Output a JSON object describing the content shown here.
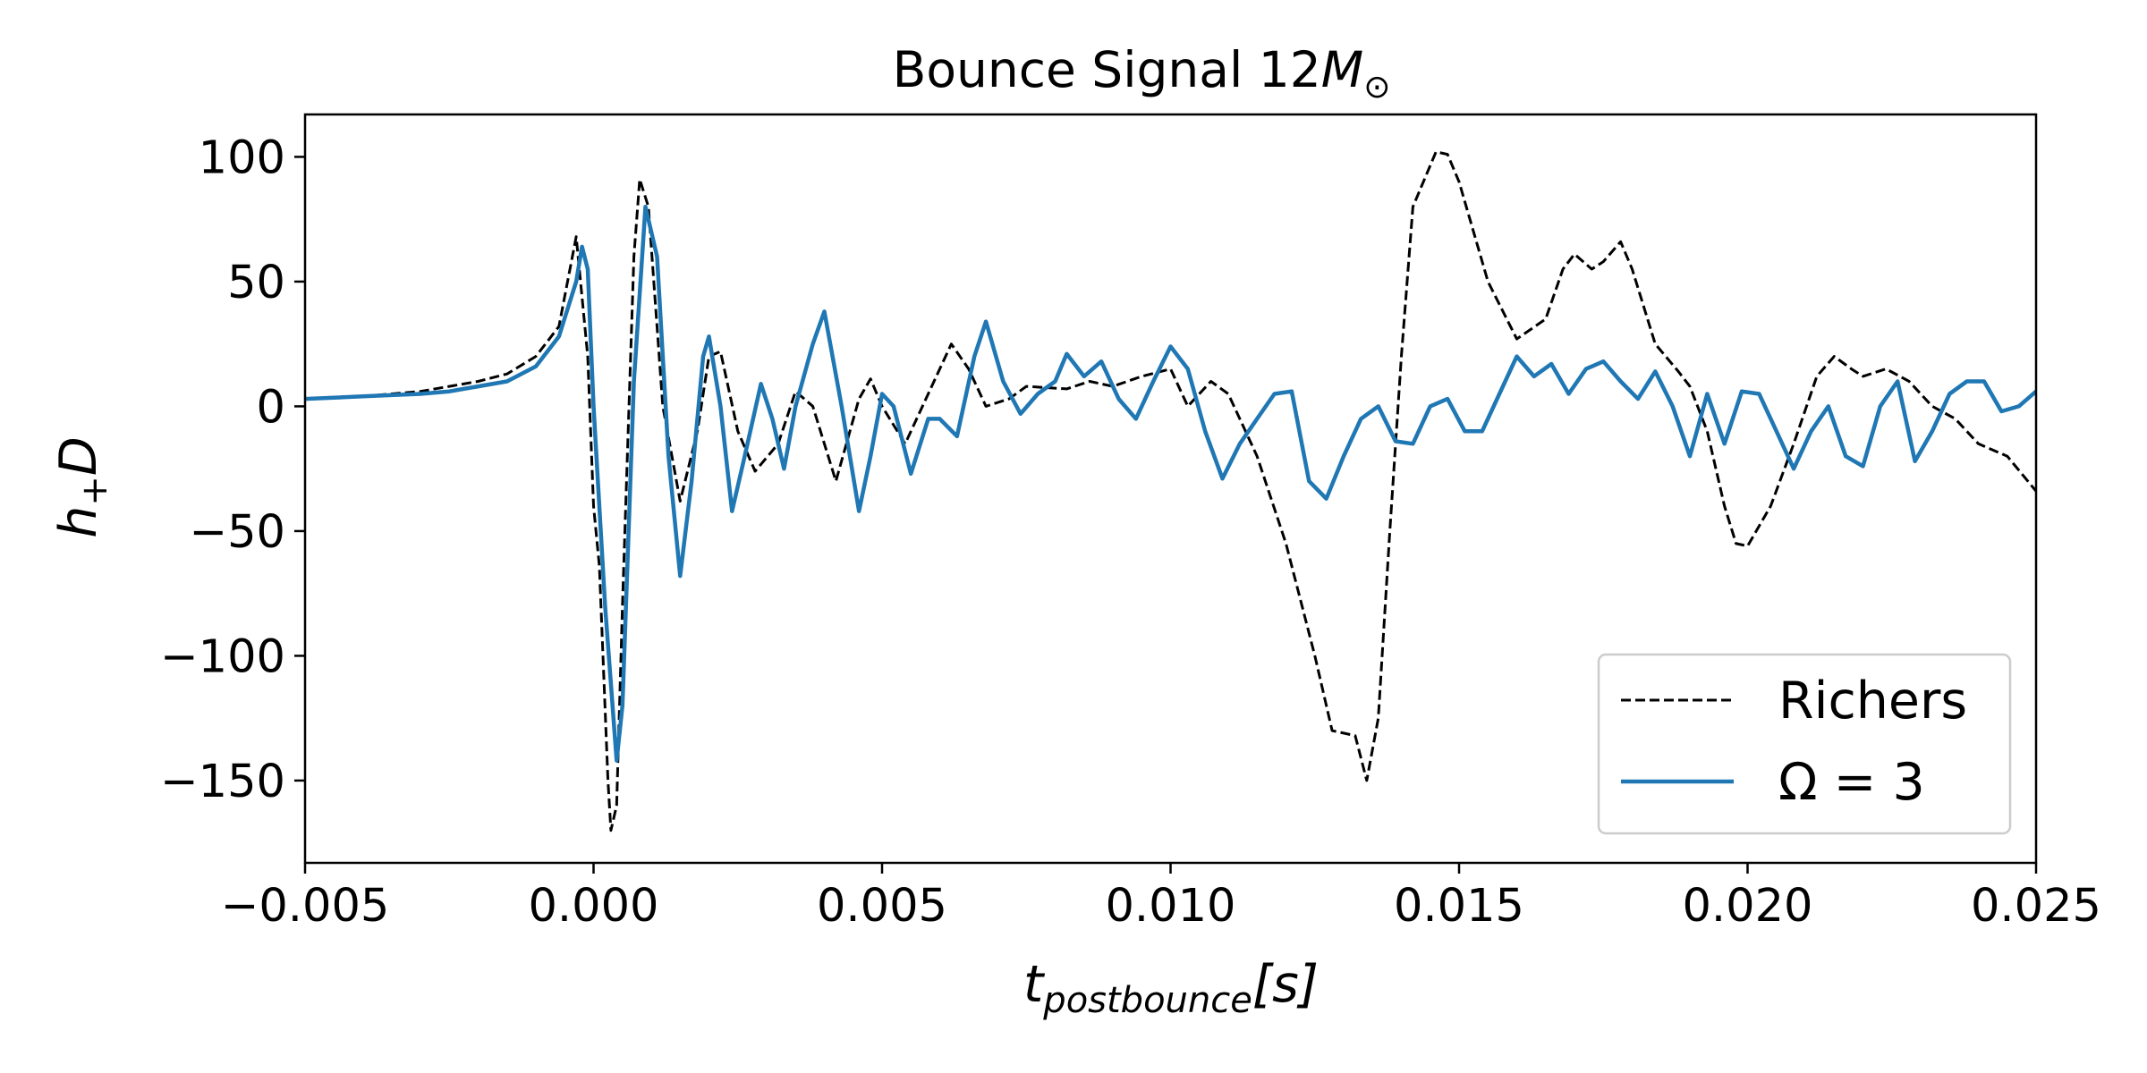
{
  "chart_data": {
    "type": "line",
    "title": {
      "main": "Bounce Signal 12",
      "symbol": "M",
      "subscript": "⊙"
    },
    "xlabel": {
      "main": "t",
      "subscript": "postbounce",
      "unit": "[s]"
    },
    "ylabel": {
      "main": "h",
      "subscript": "+",
      "tail": "D"
    },
    "xlim": [
      -0.005,
      0.025
    ],
    "ylim": [
      -183,
      117
    ],
    "x_ticks": [
      -0.005,
      0.0,
      0.005,
      0.01,
      0.015,
      0.02,
      0.025
    ],
    "x_tick_labels": [
      "−0.005",
      "0.000",
      "0.005",
      "0.010",
      "0.015",
      "0.020",
      "0.025"
    ],
    "y_ticks": [
      100,
      50,
      0,
      -50,
      -100,
      -150
    ],
    "y_tick_labels": [
      "100",
      "50",
      "0",
      "−50",
      "−100",
      "−150"
    ],
    "grid": false,
    "legend_position": "bottom-right",
    "series": [
      {
        "name": "Richers",
        "color": "#000000",
        "line_style": "dashed",
        "points": [
          [
            -0.005,
            3
          ],
          [
            -0.004,
            4
          ],
          [
            -0.003,
            6
          ],
          [
            -0.0025,
            8
          ],
          [
            -0.002,
            10
          ],
          [
            -0.0015,
            13
          ],
          [
            -0.001,
            20
          ],
          [
            -0.0006,
            32
          ],
          [
            -0.0003,
            68
          ],
          [
            -0.0001,
            20
          ],
          [
            0.0,
            -40
          ],
          [
            0.0001,
            -64
          ],
          [
            0.00025,
            -150
          ],
          [
            0.0003,
            -170
          ],
          [
            0.0004,
            -160
          ],
          [
            0.0005,
            -80
          ],
          [
            0.0007,
            60
          ],
          [
            0.0008,
            91
          ],
          [
            0.00095,
            80
          ],
          [
            0.0012,
            0
          ],
          [
            0.0015,
            -38
          ],
          [
            0.0018,
            -10
          ],
          [
            0.002,
            20
          ],
          [
            0.0022,
            22
          ],
          [
            0.0025,
            -10
          ],
          [
            0.0028,
            -26
          ],
          [
            0.0032,
            -15
          ],
          [
            0.0035,
            6
          ],
          [
            0.0038,
            0
          ],
          [
            0.0042,
            -30
          ],
          [
            0.0046,
            3
          ],
          [
            0.0048,
            11
          ],
          [
            0.005,
            0
          ],
          [
            0.0054,
            -15
          ],
          [
            0.0058,
            5
          ],
          [
            0.0062,
            25
          ],
          [
            0.0065,
            15
          ],
          [
            0.0068,
            0
          ],
          [
            0.0072,
            3
          ],
          [
            0.0075,
            8
          ],
          [
            0.0082,
            7
          ],
          [
            0.0086,
            10
          ],
          [
            0.009,
            8
          ],
          [
            0.0095,
            12
          ],
          [
            0.01,
            15
          ],
          [
            0.0103,
            0
          ],
          [
            0.0107,
            10
          ],
          [
            0.011,
            5
          ],
          [
            0.0115,
            -20
          ],
          [
            0.012,
            -55
          ],
          [
            0.0125,
            -100
          ],
          [
            0.0128,
            -130
          ],
          [
            0.0132,
            -132
          ],
          [
            0.0134,
            -150
          ],
          [
            0.0136,
            -125
          ],
          [
            0.0138,
            -50
          ],
          [
            0.014,
            20
          ],
          [
            0.0142,
            80
          ],
          [
            0.0146,
            102
          ],
          [
            0.0148,
            101
          ],
          [
            0.015,
            90
          ],
          [
            0.0155,
            50
          ],
          [
            0.016,
            27
          ],
          [
            0.0165,
            35
          ],
          [
            0.0168,
            55
          ],
          [
            0.017,
            61
          ],
          [
            0.0173,
            55
          ],
          [
            0.0175,
            58
          ],
          [
            0.0178,
            66
          ],
          [
            0.018,
            55
          ],
          [
            0.0184,
            25
          ],
          [
            0.0188,
            14
          ],
          [
            0.019,
            8
          ],
          [
            0.0193,
            -10
          ],
          [
            0.0196,
            -40
          ],
          [
            0.0198,
            -55
          ],
          [
            0.02,
            -56
          ],
          [
            0.0204,
            -40
          ],
          [
            0.0208,
            -15
          ],
          [
            0.0212,
            12
          ],
          [
            0.0215,
            20
          ],
          [
            0.0218,
            15
          ],
          [
            0.022,
            12
          ],
          [
            0.0224,
            15
          ],
          [
            0.0228,
            10
          ],
          [
            0.0232,
            0
          ],
          [
            0.0236,
            -5
          ],
          [
            0.024,
            -15
          ],
          [
            0.0245,
            -20
          ],
          [
            0.025,
            -34
          ]
        ]
      },
      {
        "name": "Ω = 3",
        "color": "#1f77b4",
        "line_style": "solid",
        "points": [
          [
            -0.005,
            3
          ],
          [
            -0.004,
            4
          ],
          [
            -0.003,
            5
          ],
          [
            -0.0025,
            6
          ],
          [
            -0.002,
            8
          ],
          [
            -0.0015,
            10
          ],
          [
            -0.001,
            16
          ],
          [
            -0.0006,
            28
          ],
          [
            -0.0003,
            50
          ],
          [
            -0.0002,
            64
          ],
          [
            -0.0001,
            55
          ],
          [
            0.0,
            0
          ],
          [
            0.0002,
            -80
          ],
          [
            0.0004,
            -142
          ],
          [
            0.0005,
            -120
          ],
          [
            0.0007,
            10
          ],
          [
            0.0009,
            80
          ],
          [
            0.0011,
            60
          ],
          [
            0.0013,
            -20
          ],
          [
            0.0015,
            -68
          ],
          [
            0.0017,
            -30
          ],
          [
            0.0019,
            20
          ],
          [
            0.002,
            28
          ],
          [
            0.0022,
            0
          ],
          [
            0.0024,
            -42
          ],
          [
            0.0026,
            -22
          ],
          [
            0.0029,
            9
          ],
          [
            0.0031,
            -5
          ],
          [
            0.0033,
            -25
          ],
          [
            0.0035,
            0
          ],
          [
            0.0038,
            25
          ],
          [
            0.004,
            38
          ],
          [
            0.0043,
            0
          ],
          [
            0.0046,
            -42
          ],
          [
            0.0048,
            -20
          ],
          [
            0.005,
            5
          ],
          [
            0.0052,
            0
          ],
          [
            0.0055,
            -27
          ],
          [
            0.0058,
            -5
          ],
          [
            0.006,
            -5
          ],
          [
            0.0063,
            -12
          ],
          [
            0.0066,
            20
          ],
          [
            0.0068,
            34
          ],
          [
            0.0071,
            10
          ],
          [
            0.0074,
            -3
          ],
          [
            0.0077,
            5
          ],
          [
            0.008,
            10
          ],
          [
            0.0082,
            21
          ],
          [
            0.0085,
            12
          ],
          [
            0.0088,
            18
          ],
          [
            0.0091,
            3
          ],
          [
            0.0094,
            -5
          ],
          [
            0.0097,
            10
          ],
          [
            0.01,
            24
          ],
          [
            0.0103,
            15
          ],
          [
            0.0106,
            -10
          ],
          [
            0.0109,
            -29
          ],
          [
            0.0112,
            -15
          ],
          [
            0.0115,
            -5
          ],
          [
            0.0118,
            5
          ],
          [
            0.0121,
            6
          ],
          [
            0.0124,
            -30
          ],
          [
            0.0127,
            -37
          ],
          [
            0.013,
            -20
          ],
          [
            0.0133,
            -5
          ],
          [
            0.0136,
            0
          ],
          [
            0.0139,
            -14
          ],
          [
            0.0142,
            -15
          ],
          [
            0.0145,
            0
          ],
          [
            0.0148,
            3
          ],
          [
            0.0151,
            -10
          ],
          [
            0.0154,
            -10
          ],
          [
            0.0157,
            5
          ],
          [
            0.016,
            20
          ],
          [
            0.0163,
            12
          ],
          [
            0.0166,
            17
          ],
          [
            0.0169,
            5
          ],
          [
            0.0172,
            15
          ],
          [
            0.0175,
            18
          ],
          [
            0.0178,
            10
          ],
          [
            0.0181,
            3
          ],
          [
            0.0184,
            14
          ],
          [
            0.0187,
            0
          ],
          [
            0.019,
            -20
          ],
          [
            0.0193,
            5
          ],
          [
            0.0196,
            -15
          ],
          [
            0.0199,
            6
          ],
          [
            0.0202,
            5
          ],
          [
            0.0205,
            -10
          ],
          [
            0.0208,
            -25
          ],
          [
            0.0211,
            -10
          ],
          [
            0.0214,
            0
          ],
          [
            0.0217,
            -20
          ],
          [
            0.022,
            -24
          ],
          [
            0.0223,
            0
          ],
          [
            0.0226,
            10
          ],
          [
            0.0229,
            -22
          ],
          [
            0.0232,
            -10
          ],
          [
            0.0235,
            5
          ],
          [
            0.0238,
            10
          ],
          [
            0.0241,
            10
          ],
          [
            0.0244,
            -2
          ],
          [
            0.0247,
            0
          ],
          [
            0.025,
            6
          ]
        ]
      }
    ]
  }
}
